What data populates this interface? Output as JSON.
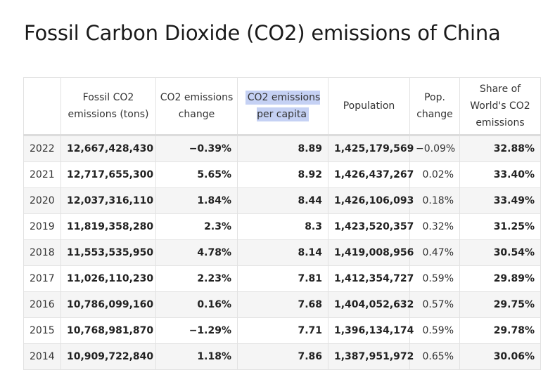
{
  "page": {
    "title": "Fossil Carbon Dioxide (CO2) emissions of China"
  },
  "table": {
    "headers": [
      "",
      "Fossil CO2 emissions (tons)",
      "CO2 emissions change",
      "CO2 emissions per capita",
      "Population",
      "Pop. change",
      "Share of World's CO2 emissions"
    ],
    "highlighted_header": "CO2 emissions per capita",
    "rows": [
      [
        "2022",
        "12,667,428,430",
        "−0.39%",
        "8.89",
        "1,425,179,569",
        "−0.09%",
        "32.88%"
      ],
      [
        "2021",
        "12,717,655,300",
        "5.65%",
        "8.92",
        "1,426,437,267",
        "0.02%",
        "33.40%"
      ],
      [
        "2020",
        "12,037,316,110",
        "1.84%",
        "8.44",
        "1,426,106,093",
        "0.18%",
        "33.49%"
      ],
      [
        "2019",
        "11,819,358,280",
        "2.3%",
        "8.3",
        "1,423,520,357",
        "0.32%",
        "31.25%"
      ],
      [
        "2018",
        "11,553,535,950",
        "4.78%",
        "8.14",
        "1,419,008,956",
        "0.47%",
        "30.54%"
      ],
      [
        "2017",
        "11,026,110,230",
        "2.23%",
        "7.81",
        "1,412,354,727",
        "0.59%",
        "29.89%"
      ],
      [
        "2016",
        "10,786,099,160",
        "0.16%",
        "7.68",
        "1,404,052,632",
        "0.57%",
        "29.75%"
      ],
      [
        "2015",
        "10,768,981,870",
        "−1.29%",
        "7.71",
        "1,396,134,174",
        "0.59%",
        "29.78%"
      ],
      [
        "2014",
        "10,909,722,840",
        "1.18%",
        "7.86",
        "1,387,951,972",
        "0.65%",
        "30.06%"
      ]
    ]
  }
}
